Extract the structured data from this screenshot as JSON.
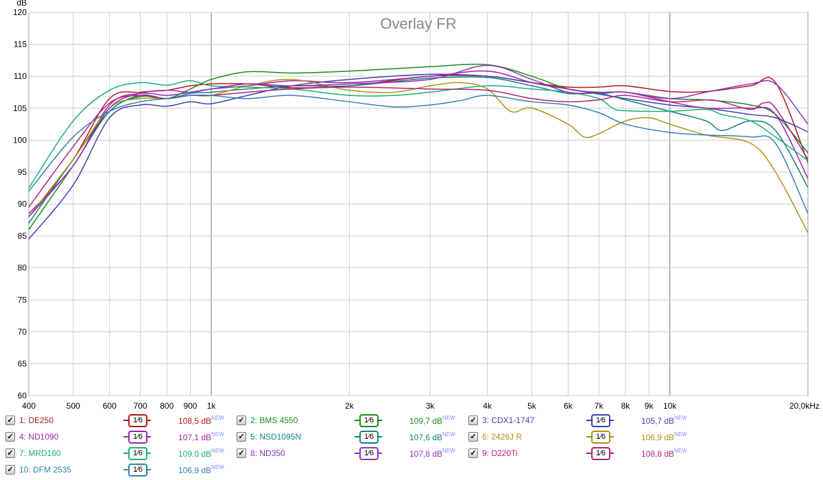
{
  "chart_data": {
    "type": "line",
    "title": "Overlay FR",
    "ylabel": "dB",
    "xlabel": "",
    "xscale": "log",
    "xlim": [
      400,
      20000
    ],
    "ylim": [
      60,
      120
    ],
    "grid": true,
    "y_ticks": [
      60,
      65,
      70,
      75,
      80,
      85,
      90,
      95,
      100,
      105,
      110,
      115,
      120
    ],
    "x_ticks": [
      {
        "v": 400,
        "l": "400"
      },
      {
        "v": 500,
        "l": "500"
      },
      {
        "v": 600,
        "l": "600"
      },
      {
        "v": 700,
        "l": "700"
      },
      {
        "v": 800,
        "l": "800"
      },
      {
        "v": 900,
        "l": "900"
      },
      {
        "v": 1000,
        "l": "1k"
      },
      {
        "v": 2000,
        "l": "2k"
      },
      {
        "v": 3000,
        "l": "3k"
      },
      {
        "v": 4000,
        "l": "4k"
      },
      {
        "v": 5000,
        "l": "5k"
      },
      {
        "v": 6000,
        "l": "6k"
      },
      {
        "v": 7000,
        "l": "7k"
      },
      {
        "v": 8000,
        "l": "8k"
      },
      {
        "v": 9000,
        "l": "9k"
      },
      {
        "v": 10000,
        "l": "10k"
      },
      {
        "v": 20000,
        "l": "20,0kHz"
      }
    ],
    "series": [
      {
        "name": "1: DE250",
        "color": "#b01818",
        "smoothing": "1/6",
        "level": "108,5 dB",
        "pts": [
          [
            400,
            88
          ],
          [
            500,
            97
          ],
          [
            600,
            106.5
          ],
          [
            700,
            107.5
          ],
          [
            800,
            107.8
          ],
          [
            900,
            108.5
          ],
          [
            1000,
            108.8
          ],
          [
            1200,
            108.8
          ],
          [
            1500,
            108.2
          ],
          [
            2000,
            108.5
          ],
          [
            3000,
            110
          ],
          [
            4000,
            110
          ],
          [
            5000,
            109
          ],
          [
            6000,
            108.3
          ],
          [
            7000,
            108.3
          ],
          [
            8000,
            108.5
          ],
          [
            10000,
            107.6
          ],
          [
            12000,
            107.6
          ],
          [
            15000,
            108.5
          ],
          [
            17000,
            109
          ],
          [
            20000,
            96.5
          ]
        ]
      },
      {
        "name": "2: BMS 4550",
        "color": "#1a8a1a",
        "smoothing": "1/6",
        "level": "109,7 dB",
        "pts": [
          [
            400,
            86
          ],
          [
            500,
            96
          ],
          [
            600,
            104.5
          ],
          [
            700,
            106.8
          ],
          [
            800,
            106.5
          ],
          [
            900,
            108
          ],
          [
            1000,
            109.5
          ],
          [
            1200,
            110.7
          ],
          [
            1500,
            110.5
          ],
          [
            2000,
            110.8
          ],
          [
            3000,
            111.5
          ],
          [
            4000,
            111.8
          ],
          [
            5000,
            110
          ],
          [
            6000,
            108
          ],
          [
            7000,
            107.5
          ],
          [
            8000,
            107.5
          ],
          [
            10000,
            106.5
          ],
          [
            12000,
            106.3
          ],
          [
            15000,
            105.5
          ],
          [
            17000,
            104
          ],
          [
            20000,
            98
          ]
        ]
      },
      {
        "name": "3: CDX1-1747",
        "color": "#4040b0",
        "smoothing": "1/6",
        "level": "105,7 dB",
        "pts": [
          [
            400,
            84.5
          ],
          [
            500,
            93
          ],
          [
            600,
            103.5
          ],
          [
            700,
            105.5
          ],
          [
            800,
            105.3
          ],
          [
            900,
            106
          ],
          [
            1000,
            105.7
          ],
          [
            1200,
            107
          ],
          [
            1500,
            108.5
          ],
          [
            2000,
            109.5
          ],
          [
            3000,
            110.3
          ],
          [
            4000,
            110
          ],
          [
            5000,
            109
          ],
          [
            6000,
            108
          ],
          [
            7000,
            107.2
          ],
          [
            8000,
            106.5
          ],
          [
            10000,
            105.5
          ],
          [
            12000,
            105
          ],
          [
            15000,
            104
          ],
          [
            17000,
            103.5
          ],
          [
            20000,
            101.3
          ]
        ]
      },
      {
        "name": "4: ND1090",
        "color": "#a020b0",
        "smoothing": "1/6",
        "level": "107,1 dB",
        "pts": [
          [
            400,
            88.5
          ],
          [
            500,
            96
          ],
          [
            600,
            105.5
          ],
          [
            700,
            107.3
          ],
          [
            800,
            107
          ],
          [
            900,
            107.5
          ],
          [
            1000,
            108
          ],
          [
            1200,
            108.5
          ],
          [
            1500,
            109.3
          ],
          [
            2000,
            109
          ],
          [
            3000,
            110
          ],
          [
            4000,
            110.8
          ],
          [
            5000,
            109
          ],
          [
            6000,
            108
          ],
          [
            7000,
            107.3
          ],
          [
            8000,
            107.5
          ],
          [
            10000,
            106
          ],
          [
            12000,
            105
          ],
          [
            15000,
            105
          ],
          [
            17000,
            104
          ],
          [
            20000,
            94
          ]
        ]
      },
      {
        "name": "5: NSD1095N",
        "color": "#138080",
        "smoothing": "1/6",
        "level": "107,6 dB",
        "pts": [
          [
            400,
            87
          ],
          [
            500,
            97
          ],
          [
            600,
            104.5
          ],
          [
            700,
            107
          ],
          [
            800,
            106.5
          ],
          [
            900,
            107.3
          ],
          [
            1000,
            107.5
          ],
          [
            1200,
            108
          ],
          [
            1500,
            108.5
          ],
          [
            2000,
            108.5
          ],
          [
            3000,
            109.7
          ],
          [
            4000,
            109.8
          ],
          [
            5000,
            108.5
          ],
          [
            6000,
            107.3
          ],
          [
            7000,
            107.3
          ],
          [
            8000,
            106.3
          ],
          [
            10000,
            104.5
          ],
          [
            12000,
            103
          ],
          [
            13000,
            101.5
          ],
          [
            15000,
            103
          ],
          [
            17000,
            101.5
          ],
          [
            20000,
            92.6
          ]
        ]
      },
      {
        "name": "6: 2426J R",
        "color": "#b09010",
        "smoothing": "1/6",
        "level": "106,9 dB",
        "pts": [
          [
            400,
            88
          ],
          [
            500,
            97
          ],
          [
            600,
            105
          ],
          [
            700,
            106.5
          ],
          [
            800,
            106.5
          ],
          [
            900,
            107
          ],
          [
            1000,
            107
          ],
          [
            1200,
            108.5
          ],
          [
            1500,
            109.5
          ],
          [
            2000,
            107.8
          ],
          [
            2500,
            107.5
          ],
          [
            3000,
            108.5
          ],
          [
            3500,
            109
          ],
          [
            4000,
            108
          ],
          [
            4500,
            104.5
          ],
          [
            5000,
            105
          ],
          [
            6000,
            102.5
          ],
          [
            6500,
            100.5
          ],
          [
            7000,
            101
          ],
          [
            8000,
            103
          ],
          [
            9000,
            103.5
          ],
          [
            10000,
            102.5
          ],
          [
            12000,
            100.8
          ],
          [
            15000,
            99.5
          ],
          [
            17000,
            95
          ],
          [
            20000,
            85.5
          ]
        ]
      },
      {
        "name": "7: MRD160",
        "color": "#18b070",
        "smoothing": "1/6",
        "level": "109,0 dB",
        "pts": [
          [
            400,
            92.5
          ],
          [
            500,
            103
          ],
          [
            600,
            107.8
          ],
          [
            700,
            109
          ],
          [
            800,
            108.6
          ],
          [
            900,
            109.3
          ],
          [
            1000,
            108.5
          ],
          [
            1200,
            108.3
          ],
          [
            1500,
            108
          ],
          [
            2000,
            107
          ],
          [
            2500,
            107
          ],
          [
            3000,
            107.5
          ],
          [
            4000,
            108.5
          ],
          [
            5000,
            108
          ],
          [
            6000,
            107.5
          ],
          [
            7000,
            106.5
          ],
          [
            7500,
            105
          ],
          [
            8000,
            104.6
          ],
          [
            10000,
            104.5
          ],
          [
            12000,
            104.8
          ],
          [
            13000,
            104
          ],
          [
            15000,
            103
          ],
          [
            17000,
            100.5
          ],
          [
            20000,
            96.8
          ]
        ]
      },
      {
        "name": "8: ND350",
        "color": "#9030c0",
        "smoothing": "1/6",
        "level": "107,8 dB",
        "pts": [
          [
            400,
            88
          ],
          [
            500,
            96
          ],
          [
            600,
            105
          ],
          [
            700,
            107.3
          ],
          [
            800,
            107.8
          ],
          [
            900,
            107.5
          ],
          [
            1000,
            108
          ],
          [
            1200,
            108.8
          ],
          [
            1500,
            108.5
          ],
          [
            2000,
            108.8
          ],
          [
            3000,
            109.5
          ],
          [
            4000,
            111.7
          ],
          [
            5000,
            109.5
          ],
          [
            6000,
            107.5
          ],
          [
            7000,
            107.4
          ],
          [
            8000,
            107.5
          ],
          [
            10000,
            106.5
          ],
          [
            12000,
            107.5
          ],
          [
            15000,
            108.8
          ],
          [
            17000,
            108.8
          ],
          [
            20000,
            102.5
          ]
        ]
      },
      {
        "name": "9: D220Ti",
        "color": "#b02080",
        "smoothing": "1/6",
        "level": "108,8 dB",
        "pts": [
          [
            400,
            89.5
          ],
          [
            500,
            99
          ],
          [
            600,
            105.8
          ],
          [
            700,
            107
          ],
          [
            800,
            106.5
          ],
          [
            900,
            107
          ],
          [
            1000,
            107
          ],
          [
            1200,
            107.5
          ],
          [
            1500,
            108
          ],
          [
            2000,
            108.3
          ],
          [
            3000,
            108
          ],
          [
            4000,
            107.8
          ],
          [
            5000,
            106.5
          ],
          [
            6000,
            106
          ],
          [
            7000,
            106.3
          ],
          [
            8000,
            107
          ],
          [
            10000,
            106
          ],
          [
            12000,
            106.3
          ],
          [
            13000,
            106
          ],
          [
            15000,
            104.8
          ],
          [
            16000,
            105.8
          ],
          [
            17000,
            105
          ],
          [
            20000,
            97
          ]
        ]
      },
      {
        "name": "10: DFM 2535",
        "color": "#3080b0",
        "smoothing": "1/6",
        "level": "106,9 dB",
        "pts": [
          [
            400,
            92
          ],
          [
            500,
            100.5
          ],
          [
            600,
            104.5
          ],
          [
            700,
            106
          ],
          [
            800,
            106.5
          ],
          [
            900,
            107
          ],
          [
            1000,
            107
          ],
          [
            1200,
            106.5
          ],
          [
            1500,
            107
          ],
          [
            2000,
            106
          ],
          [
            2500,
            105.2
          ],
          [
            3000,
            105.5
          ],
          [
            3500,
            106.2
          ],
          [
            4000,
            107
          ],
          [
            5000,
            106
          ],
          [
            6000,
            105.5
          ],
          [
            7000,
            104.3
          ],
          [
            8000,
            102.5
          ],
          [
            10000,
            101.2
          ],
          [
            12000,
            100.8
          ],
          [
            15000,
            100.5
          ],
          [
            17000,
            99.5
          ],
          [
            20000,
            88.5
          ]
        ]
      }
    ]
  },
  "legend": {
    "new_tag": "NEW",
    "check": "✓",
    "smoothing_label": "1⁄6"
  }
}
